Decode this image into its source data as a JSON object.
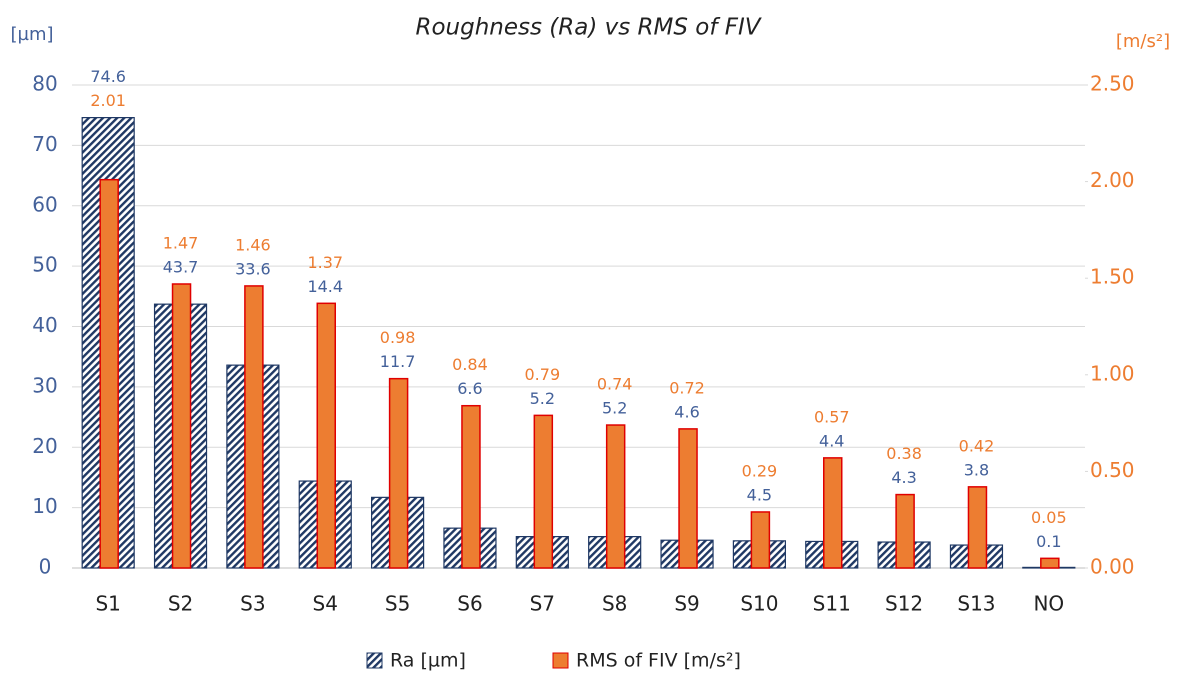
{
  "chart_data": {
    "type": "bar",
    "title": "Roughness (Ra) vs RMS of FIV",
    "y_label": "[µm]",
    "y2_label": "[m/s²]",
    "categories": [
      "S1",
      "S2",
      "S3",
      "S4",
      "S5",
      "S6",
      "S7",
      "S8",
      "S9",
      "S10",
      "S11",
      "S12",
      "S13",
      "NO"
    ],
    "series": [
      {
        "name": "Ra [µm]",
        "color": "#1f3864",
        "label_color": "#44619a",
        "values": [
          74.6,
          43.7,
          33.6,
          14.4,
          11.7,
          6.6,
          5.2,
          5.2,
          4.6,
          4.5,
          4.4,
          4.3,
          3.8,
          0.1
        ]
      },
      {
        "name": "RMS of FIV [m/s²]",
        "color": "#ed7d31",
        "edge_color": "#e00000",
        "axis": "y2",
        "values": [
          2.01,
          1.47,
          1.46,
          1.37,
          0.98,
          0.84,
          0.79,
          0.74,
          0.72,
          0.29,
          0.57,
          0.38,
          0.42,
          0.05
        ]
      }
    ],
    "ylim": [
      0,
      80
    ],
    "yticks": [
      0,
      10,
      20,
      30,
      40,
      50,
      60,
      70,
      80
    ],
    "y2lim": [
      0,
      2.5
    ],
    "y2ticks": [
      {
        "value": 0,
        "label": "0.00"
      },
      {
        "value": 0.5,
        "label": "0.50"
      },
      {
        "value": 1,
        "label": "1.00"
      },
      {
        "value": 1.5,
        "label": "1.50"
      },
      {
        "value": 2,
        "label": "2.00"
      },
      {
        "value": 2.5,
        "label": "2.50"
      }
    ],
    "grid": true,
    "legend": "bottom"
  }
}
